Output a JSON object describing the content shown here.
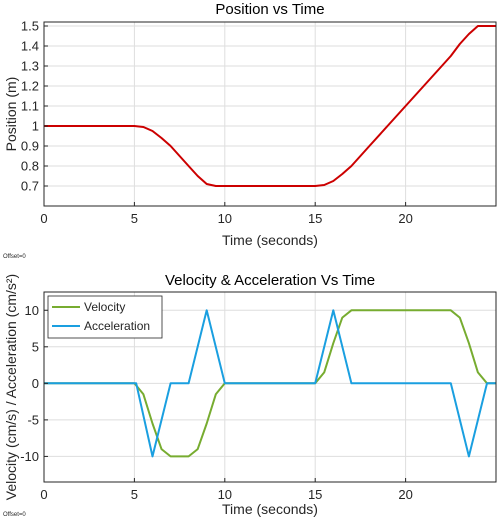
{
  "offset_label": "Offset=0",
  "chart_data": [
    {
      "type": "line",
      "title": "Position vs Time",
      "xlabel": "Time (seconds)",
      "ylabel": "Position (m)",
      "xlim": [
        0,
        25
      ],
      "ylim": [
        0.6,
        1.52
      ],
      "xticks": [
        0,
        5,
        10,
        15,
        20
      ],
      "yticks": [
        0.7,
        0.8,
        0.9,
        1.0,
        1.1,
        1.2,
        1.3,
        1.4,
        1.5
      ],
      "ytick_labels": [
        "0.7",
        "0.8",
        "0.9",
        "1",
        "1.1",
        "1.2",
        "1.3",
        "1.4",
        "1.5"
      ],
      "grid": true,
      "series": [
        {
          "color": "#cc0000",
          "x": [
            0,
            5.0,
            5.5,
            6.0,
            6.5,
            7.0,
            8.0,
            8.5,
            9.0,
            9.5,
            10.0,
            15.0,
            15.5,
            16.0,
            16.5,
            17.0,
            18.0,
            19.0,
            20.0,
            21.0,
            22.0,
            22.5,
            23.0,
            23.5,
            24.0,
            25.0
          ],
          "y": [
            1.0,
            1.0,
            0.995,
            0.975,
            0.94,
            0.9,
            0.8,
            0.75,
            0.71,
            0.7,
            0.7,
            0.7,
            0.705,
            0.725,
            0.76,
            0.8,
            0.9,
            1.0,
            1.1,
            1.2,
            1.3,
            1.35,
            1.41,
            1.46,
            1.5,
            1.5
          ]
        }
      ]
    },
    {
      "type": "line",
      "title": "Velocity & Acceleration Vs Time",
      "xlabel": "Time (seconds)",
      "ylabel": "Velocity (cm/s) / Acceleration (cm/s²)",
      "xlim": [
        0,
        25
      ],
      "ylim": [
        -13.5,
        12.5
      ],
      "xticks": [
        0,
        5,
        10,
        15,
        20
      ],
      "yticks": [
        -10,
        -5,
        0,
        5,
        10
      ],
      "grid": true,
      "legend_position": "top-left",
      "series": [
        {
          "name": "Velocity",
          "color": "#77ac30",
          "x": [
            0,
            5.0,
            5.5,
            6.0,
            6.5,
            7.0,
            8.0,
            8.5,
            9.0,
            9.5,
            10.0,
            15.0,
            15.5,
            16.0,
            16.5,
            17.0,
            22.5,
            23.0,
            23.5,
            24.0,
            24.5,
            25.0
          ],
          "y": [
            0,
            0,
            -1.5,
            -5.5,
            -9,
            -10,
            -10,
            -9,
            -5.5,
            -1.5,
            0,
            0,
            1.5,
            5.5,
            9,
            10,
            10,
            9,
            5.5,
            1.5,
            0,
            0
          ]
        },
        {
          "name": "Acceleration",
          "color": "#1a9fe0",
          "x": [
            0,
            5.1,
            6.0,
            7.0,
            8.0,
            9.0,
            10.0,
            15.0,
            16.0,
            17.0,
            22.5,
            23.5,
            24.5,
            25.0
          ],
          "y": [
            0,
            0,
            -10,
            0,
            0,
            10,
            0,
            0,
            10,
            0,
            0,
            -10,
            0,
            0
          ]
        }
      ]
    }
  ]
}
